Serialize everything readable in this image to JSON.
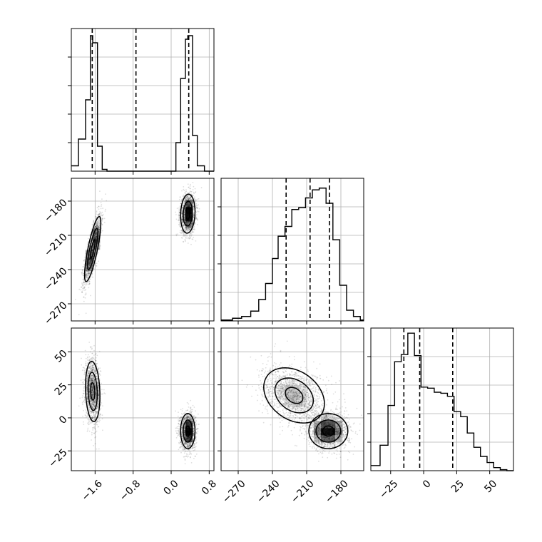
{
  "chart_data": {
    "type": "corner",
    "grid": true,
    "parameters": [
      {
        "index": 0,
        "range": [
          -2.1,
          0.9
        ],
        "ticks": [
          -1.6,
          -0.8,
          0.0,
          0.8
        ],
        "tick_labels": [
          "−1.6",
          "−0.8",
          "0.0",
          "0.8"
        ]
      },
      {
        "index": 1,
        "range": [
          -285,
          -160
        ],
        "ticks": [
          -270,
          -240,
          -210,
          -180
        ],
        "tick_labels": [
          "−270",
          "−240",
          "−210",
          "−180"
        ]
      },
      {
        "index": 2,
        "range": [
          -40,
          68
        ],
        "ticks": [
          -25,
          0,
          25,
          50
        ],
        "tick_labels": [
          "−25",
          "0",
          "25",
          "50"
        ]
      }
    ],
    "histograms": [
      {
        "param": 0,
        "bin_edges": [
          -2.1,
          -1.95,
          -1.8,
          -1.7,
          -1.65,
          -1.55,
          -1.45,
          -1.35,
          -1.2,
          0.1,
          0.2,
          0.3,
          0.35,
          0.45,
          0.55,
          0.7,
          0.9
        ],
        "counts": [
          0.3,
          1.8,
          4.0,
          7.6,
          7.2,
          1.4,
          0.1,
          0,
          0,
          1.6,
          5.2,
          7.4,
          7.6,
          2.0,
          0.3,
          0
        ],
        "ymax": 8.0,
        "quantiles": [
          -1.66,
          -0.74,
          0.37
        ]
      },
      {
        "param": 1,
        "bin_edges": [
          -285,
          -275,
          -267,
          -259,
          -252,
          -246,
          -240,
          -235,
          -229,
          -223,
          -217,
          -211,
          -205,
          -199,
          -193,
          -187,
          -181,
          -175,
          -169,
          -163,
          -160
        ],
        "counts": [
          0.1,
          0.3,
          0.5,
          1.1,
          2.4,
          4.2,
          7.0,
          9.5,
          10.6,
          12.5,
          12.7,
          13.8,
          14.7,
          14.9,
          13.2,
          9.1,
          4.0,
          1.2,
          0.5,
          0.1
        ],
        "ymax": 16.0,
        "quantiles": [
          -228,
          -207,
          -190
        ]
      },
      {
        "param": 2,
        "bin_edges": [
          -40,
          -33,
          -27,
          -22,
          -17,
          -12,
          -7,
          -2,
          3,
          8,
          13,
          18,
          23,
          28,
          33,
          38,
          43,
          48,
          53,
          58,
          63,
          68
        ],
        "counts": [
          0.5,
          2.5,
          6.4,
          10.7,
          11.4,
          13.5,
          11.3,
          8.2,
          8.1,
          7.7,
          7.6,
          7.3,
          5.8,
          5.3,
          3.7,
          2.3,
          1.4,
          0.8,
          0.3,
          0.1,
          0
        ],
        "ymax": 14.0,
        "quantiles": [
          -15,
          -3,
          22
        ]
      }
    ],
    "pairs": [
      {
        "x_param": 0,
        "y_param": 1,
        "clusters": [
          {
            "mean": [
              -1.65,
              -222
            ],
            "std": [
              0.09,
              15
            ],
            "corr": 0.8,
            "weight": 0.5
          },
          {
            "mean": [
              0.35,
              -191
            ],
            "std": [
              0.08,
              9
            ],
            "corr": 0.1,
            "weight": 0.5
          }
        ]
      },
      {
        "x_param": 0,
        "y_param": 2,
        "clusters": [
          {
            "mean": [
              -1.65,
              20
            ],
            "std": [
              0.08,
              12
            ],
            "corr": -0.15,
            "weight": 0.5
          },
          {
            "mean": [
              0.35,
              -10
            ],
            "std": [
              0.08,
              7
            ],
            "corr": 0.0,
            "weight": 0.5
          }
        ]
      },
      {
        "x_param": 1,
        "y_param": 2,
        "clusters": [
          {
            "mean": [
              -221,
              17
            ],
            "std": [
              14,
              11
            ],
            "corr": -0.3,
            "weight": 0.5
          },
          {
            "mean": [
              -191,
              -10
            ],
            "std": [
              9,
              7
            ],
            "corr": 0.0,
            "weight": 0.5
          }
        ]
      }
    ]
  }
}
